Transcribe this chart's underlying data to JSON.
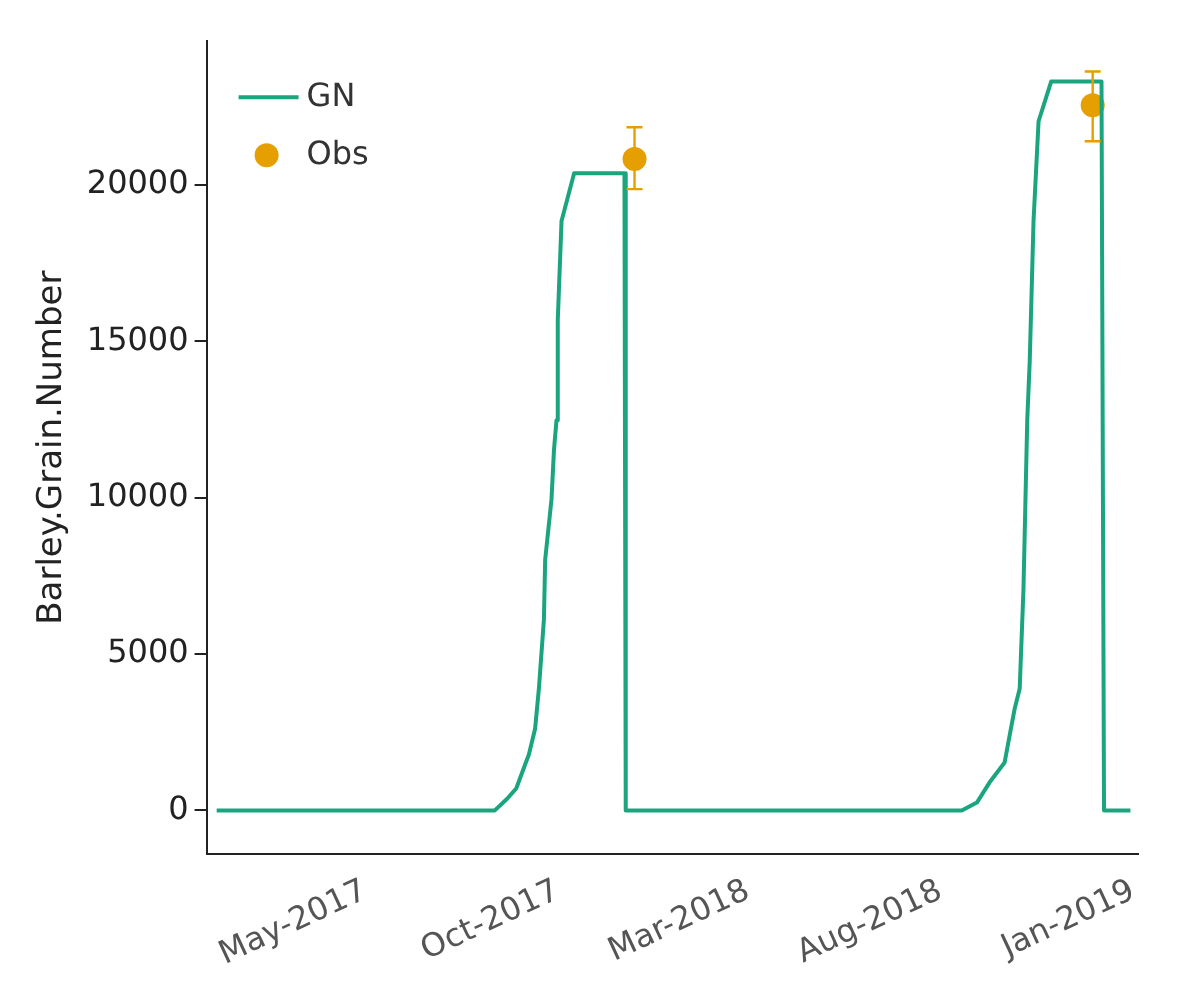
{
  "chart_data": {
    "type": "line",
    "ylabel": "Barley.Grain.Number",
    "xlim": [
      "2016-12-26",
      "2019-01-05"
    ],
    "ylim": [
      -1400,
      24600
    ],
    "xticks": [
      {
        "value": "2017-05-01",
        "label": "May-2017"
      },
      {
        "value": "2017-10-01",
        "label": "Oct-2017"
      },
      {
        "value": "2018-03-01",
        "label": "Mar-2018"
      },
      {
        "value": "2018-08-01",
        "label": "Aug-2018"
      },
      {
        "value": "2019-01-01",
        "label": "Jan-2019"
      }
    ],
    "yticks": [
      0,
      5000,
      10000,
      15000,
      20000
    ],
    "grid": false,
    "legend": "top left",
    "series": [
      {
        "name": "GN",
        "color": "#1aa57f",
        "marker": "none",
        "line_style": "solid",
        "x": [
          "2017-01-03",
          "2017-08-12",
          "2017-08-22",
          "2017-08-29",
          "2017-09-05",
          "2017-09-08",
          "2017-09-13",
          "2017-09-16",
          "2017-09-20",
          "2017-09-21",
          "2017-09-26",
          "2017-09-28",
          "2017-09-30",
          "2017-10-01",
          "2017-10-04",
          "2017-10-14",
          "2017-11-23",
          "2017-11-24",
          "2018-08-18",
          "2018-08-30",
          "2018-09-09",
          "2018-09-21",
          "2018-09-26",
          "2018-09-29",
          "2018-10-03",
          "2018-10-06",
          "2018-10-09",
          "2018-10-11",
          "2018-10-14",
          "2018-10-18",
          "2018-10-28",
          "2018-12-07",
          "2018-12-09",
          "2018-12-30"
        ],
        "values": [
          0,
          0,
          380,
          700,
          1460,
          1780,
          2610,
          3890,
          6110,
          8020,
          9940,
          11530,
          12480,
          15670,
          18850,
          20380,
          20380,
          0,
          0,
          250,
          890,
          1530,
          2610,
          3250,
          3890,
          7070,
          12480,
          14390,
          18850,
          22040,
          23310,
          23310,
          0,
          0
        ]
      },
      {
        "name": "Obs",
        "type": "scatter",
        "color": "#e69f00",
        "marker": "circle",
        "x": [
          "2017-12-01",
          "2018-11-30"
        ],
        "values": [
          20830,
          22550
        ],
        "errors": [
          [
            19870,
            21850
          ],
          [
            21400,
            23630
          ]
        ]
      }
    ]
  }
}
